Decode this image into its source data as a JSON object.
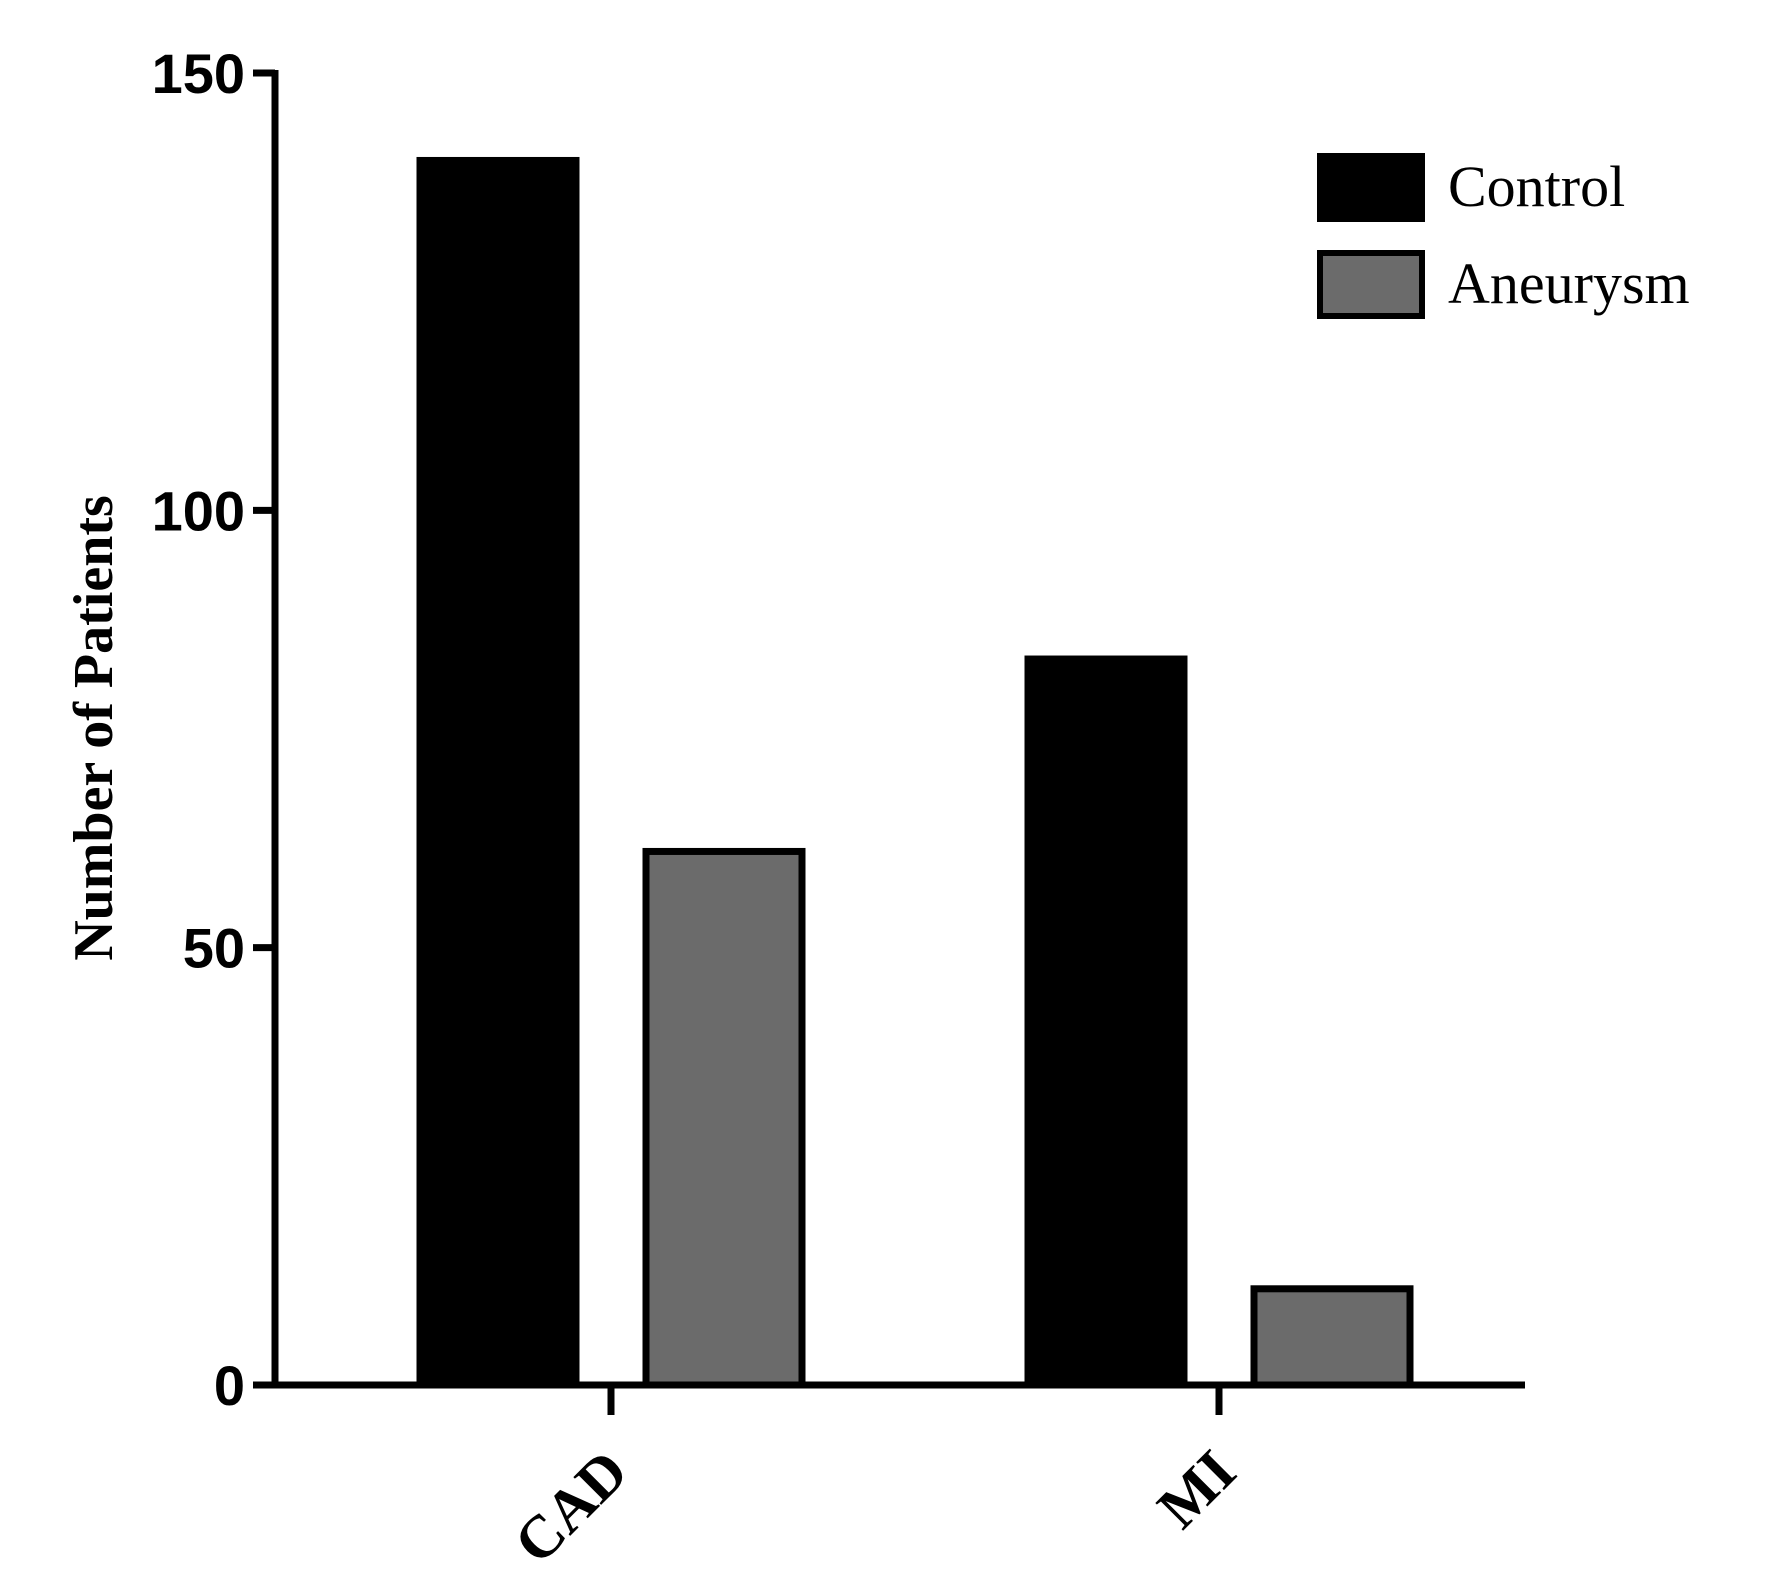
{
  "chart_data": {
    "type": "bar",
    "title": "",
    "xlabel": "",
    "ylabel": "Number of Patients",
    "categories": [
      "CAD",
      "MI"
    ],
    "series": [
      {
        "name": "Control",
        "values": [
          140,
          83
        ],
        "color": "#000000"
      },
      {
        "name": "Aneurysm",
        "values": [
          61,
          11
        ],
        "color": "#6b6b6b"
      }
    ],
    "ylim": [
      0,
      150
    ],
    "yticks": [
      0,
      50,
      100,
      150
    ],
    "ytick_labels": [
      "0",
      "50",
      "100",
      "150"
    ],
    "grid": false,
    "legend_position": "top-right"
  }
}
